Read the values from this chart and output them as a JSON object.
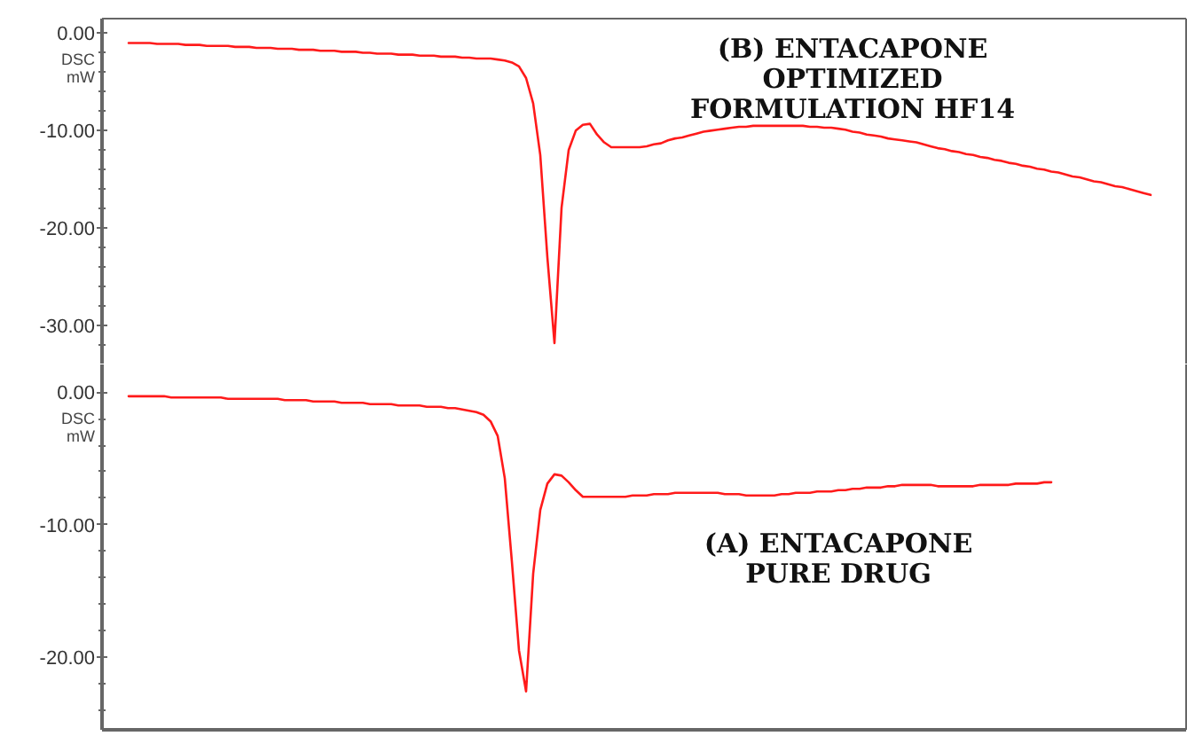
{
  "chart_data": [
    {
      "type": "line",
      "ylabel": "DSC\nmW",
      "annotations": [
        "(B) ENTACAPONE\nOPTIMIZED\nFORMULATION HF14"
      ],
      "tick_labels": "y",
      "ylim": [
        -34,
        1.5
      ],
      "yticks": [
        {
          "value": 0,
          "label": "0.00"
        },
        {
          "value": -2,
          "label": null
        },
        {
          "value": -4,
          "label": null
        },
        {
          "value": -6,
          "label": null
        },
        {
          "value": -8,
          "label": null
        },
        {
          "value": -10,
          "label": "-10.00"
        },
        {
          "value": -12,
          "label": null
        },
        {
          "value": -14,
          "label": null
        },
        {
          "value": -16,
          "label": null
        },
        {
          "value": -18,
          "label": null
        },
        {
          "value": -20,
          "label": "-20.00"
        },
        {
          "value": -22,
          "label": null
        },
        {
          "value": -24,
          "label": null
        },
        {
          "value": -26,
          "label": null
        },
        {
          "value": -28,
          "label": null
        },
        {
          "value": -30,
          "label": "-30.00"
        },
        {
          "value": -32,
          "label": null
        }
      ],
      "categories": [
        null,
        null,
        null,
        null,
        null,
        null,
        null,
        null,
        null,
        null,
        null,
        null,
        null,
        null,
        null,
        null,
        null,
        null,
        null,
        null,
        null,
        null,
        null,
        null,
        null,
        null,
        null,
        null,
        null,
        null,
        null,
        null,
        null,
        null,
        null,
        null,
        null,
        null,
        null,
        null,
        null,
        null,
        null,
        null,
        null,
        null,
        null,
        null,
        null,
        null,
        null,
        null,
        null,
        null,
        null,
        null,
        null,
        null,
        null,
        null,
        null,
        null,
        null,
        null,
        null,
        null,
        null,
        null,
        null,
        null,
        null,
        null,
        null,
        null,
        null,
        null,
        null,
        null,
        null,
        null,
        null,
        null,
        null,
        null,
        null,
        null,
        null,
        null,
        null,
        null,
        null,
        null,
        null,
        null,
        null,
        null,
        null,
        null,
        null,
        null,
        null,
        null,
        null,
        null,
        null,
        null,
        null,
        null,
        null,
        null,
        null,
        null,
        null,
        null,
        null,
        null,
        null,
        null,
        null,
        null,
        null,
        null,
        null,
        null,
        null,
        null,
        null,
        null,
        null,
        null,
        null,
        null,
        null,
        null,
        null,
        null,
        null,
        null,
        null,
        null,
        null,
        null,
        null,
        null,
        null
      ],
      "series": [
        {
          "color": "#ff1a1a",
          "values": [
            -1.0,
            -1.0,
            -1.0,
            -1.0,
            -1.1,
            -1.1,
            -1.1,
            -1.1,
            -1.2,
            -1.2,
            -1.2,
            -1.3,
            -1.3,
            -1.3,
            -1.3,
            -1.4,
            -1.4,
            -1.4,
            -1.5,
            -1.5,
            -1.5,
            -1.6,
            -1.6,
            -1.6,
            -1.7,
            -1.7,
            -1.7,
            -1.8,
            -1.8,
            -1.8,
            -1.9,
            -1.9,
            -1.9,
            -2.0,
            -2.0,
            -2.1,
            -2.1,
            -2.1,
            -2.2,
            -2.2,
            -2.2,
            -2.3,
            -2.3,
            -2.3,
            -2.4,
            -2.4,
            -2.4,
            -2.5,
            -2.5,
            -2.6,
            -2.6,
            -2.6,
            -2.7,
            -2.8,
            -3.0,
            -3.4,
            -4.6,
            -7.2,
            -12.5,
            -23.0,
            -31.8,
            -17.9,
            -12.0,
            -10.0,
            -9.4,
            -9.3,
            -10.4,
            -11.2,
            -11.7,
            -11.7,
            -11.7,
            -11.7,
            -11.7,
            -11.6,
            -11.4,
            -11.3,
            -11.0,
            -10.8,
            -10.7,
            -10.5,
            -10.3,
            -10.1,
            -10.0,
            -9.9,
            -9.8,
            -9.7,
            -9.6,
            -9.6,
            -9.5,
            -9.5,
            -9.5,
            -9.5,
            -9.5,
            -9.5,
            -9.5,
            -9.5,
            -9.6,
            -9.6,
            -9.7,
            -9.7,
            -9.8,
            -9.9,
            -10.1,
            -10.2,
            -10.4,
            -10.5,
            -10.6,
            -10.8,
            -10.9,
            -11.0,
            -11.1,
            -11.2,
            -11.4,
            -11.6,
            -11.8,
            -11.9,
            -12.1,
            -12.2,
            -12.4,
            -12.5,
            -12.7,
            -12.8,
            -13.0,
            -13.1,
            -13.3,
            -13.4,
            -13.6,
            -13.7,
            -13.9,
            -14.0,
            -14.2,
            -14.3,
            -14.5,
            -14.7,
            -14.8,
            -15.0,
            -15.2,
            -15.3,
            -15.5,
            -15.7,
            -15.8,
            -16.0,
            -16.2,
            -16.4,
            -16.6
          ]
        }
      ]
    },
    {
      "type": "line",
      "ylabel": "DSC\nmW",
      "annotations": [
        "(A) ENTACAPONE\nPURE DRUG"
      ],
      "tick_labels": "y",
      "ylim": [
        -25.5,
        2.1
      ],
      "yticks": [
        {
          "value": 0,
          "label": "0.00"
        },
        {
          "value": -2,
          "label": null
        },
        {
          "value": -4,
          "label": null
        },
        {
          "value": -6,
          "label": null
        },
        {
          "value": -8,
          "label": null
        },
        {
          "value": -10,
          "label": "-10.00"
        },
        {
          "value": -12,
          "label": null
        },
        {
          "value": -14,
          "label": null
        },
        {
          "value": -16,
          "label": null
        },
        {
          "value": -18,
          "label": null
        },
        {
          "value": -20,
          "label": "-20.00"
        },
        {
          "value": -22,
          "label": null
        },
        {
          "value": -24,
          "label": null
        }
      ],
      "categories": [
        null,
        null,
        null,
        null,
        null,
        null,
        null,
        null,
        null,
        null,
        null,
        null,
        null,
        null,
        null,
        null,
        null,
        null,
        null,
        null,
        null,
        null,
        null,
        null,
        null,
        null,
        null,
        null,
        null,
        null,
        null,
        null,
        null,
        null,
        null,
        null,
        null,
        null,
        null,
        null,
        null,
        null,
        null,
        null,
        null,
        null,
        null,
        null,
        null,
        null,
        null,
        null,
        null,
        null,
        null,
        null,
        null,
        null,
        null,
        null,
        null,
        null,
        null,
        null,
        null,
        null,
        null,
        null,
        null,
        null,
        null,
        null,
        null,
        null,
        null,
        null,
        null,
        null,
        null,
        null,
        null,
        null,
        null,
        null,
        null,
        null,
        null,
        null,
        null,
        null,
        null,
        null,
        null,
        null,
        null,
        null,
        null,
        null,
        null,
        null,
        null,
        null,
        null,
        null,
        null,
        null,
        null,
        null,
        null,
        null,
        null,
        null,
        null,
        null,
        null,
        null,
        null,
        null,
        null,
        null,
        null,
        null,
        null,
        null,
        null,
        null,
        null,
        null,
        null,
        null,
        null,
        null,
        null,
        null,
        null,
        null,
        null,
        null,
        null,
        null,
        null,
        null,
        null,
        null,
        null
      ],
      "series": [
        {
          "color": "#ff1a1a",
          "values": [
            -0.3,
            -0.3,
            -0.3,
            -0.3,
            -0.3,
            -0.3,
            -0.4,
            -0.4,
            -0.4,
            -0.4,
            -0.4,
            -0.4,
            -0.4,
            -0.4,
            -0.5,
            -0.5,
            -0.5,
            -0.5,
            -0.5,
            -0.5,
            -0.5,
            -0.5,
            -0.6,
            -0.6,
            -0.6,
            -0.6,
            -0.7,
            -0.7,
            -0.7,
            -0.7,
            -0.8,
            -0.8,
            -0.8,
            -0.8,
            -0.9,
            -0.9,
            -0.9,
            -0.9,
            -1.0,
            -1.0,
            -1.0,
            -1.0,
            -1.1,
            -1.1,
            -1.1,
            -1.2,
            -1.2,
            -1.3,
            -1.4,
            -1.5,
            -1.7,
            -2.2,
            -3.3,
            -6.5,
            -12.8,
            -19.5,
            -22.6,
            -13.7,
            -8.9,
            -6.9,
            -6.2,
            -6.3,
            -6.8,
            -7.4,
            -7.9,
            -7.9,
            -7.9,
            -7.9,
            -7.9,
            -7.9,
            -7.9,
            -7.8,
            -7.8,
            -7.8,
            -7.7,
            -7.7,
            -7.7,
            -7.6,
            -7.6,
            -7.6,
            -7.6,
            -7.6,
            -7.6,
            -7.6,
            -7.7,
            -7.7,
            -7.7,
            -7.8,
            -7.8,
            -7.8,
            -7.8,
            -7.8,
            -7.7,
            -7.7,
            -7.6,
            -7.6,
            -7.6,
            -7.5,
            -7.5,
            -7.5,
            -7.4,
            -7.4,
            -7.3,
            -7.3,
            -7.2,
            -7.2,
            -7.2,
            -7.1,
            -7.1,
            -7.0,
            -7.0,
            -7.0,
            -7.0,
            -7.0,
            -7.1,
            -7.1,
            -7.1,
            -7.1,
            -7.1,
            -7.1,
            -7.0,
            -7.0,
            -7.0,
            -7.0,
            -7.0,
            -6.9,
            -6.9,
            -6.9,
            -6.9,
            -6.8,
            -6.8,
            null,
            null,
            null,
            null,
            null,
            null,
            null,
            null,
            null,
            null,
            null,
            null,
            null,
            null
          ]
        }
      ]
    }
  ]
}
